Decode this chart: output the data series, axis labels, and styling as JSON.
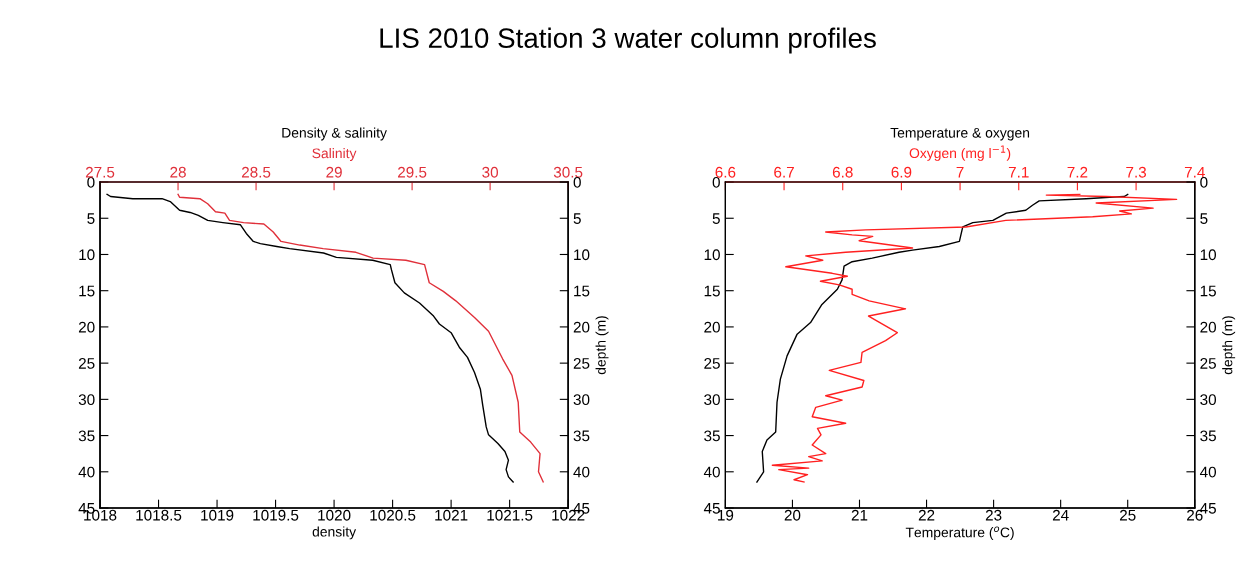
{
  "chart_data": [
    {
      "type": "line",
      "title": "Density & salinity",
      "annotations": [
        "LIS 2010 Station 3 water column profiles"
      ],
      "xlabel": "density",
      "x2label": "Salinity",
      "y2label": "depth (m)",
      "xlim": [
        1018,
        1022
      ],
      "xticks": [
        1018,
        1018.5,
        1019,
        1019.5,
        1020,
        1020.5,
        1021,
        1021.5,
        1022
      ],
      "x2lim": [
        27.5,
        30.5
      ],
      "x2ticks": [
        27.5,
        28,
        28.5,
        29,
        29.5,
        30,
        30.5
      ],
      "ylim": [
        45,
        0
      ],
      "yticks": [
        0,
        5,
        10,
        15,
        20,
        25,
        30,
        35,
        40,
        45
      ],
      "y2lim": [
        45,
        0
      ],
      "y2ticks": [
        0,
        5,
        10,
        15,
        20,
        25,
        30,
        35,
        40,
        45
      ],
      "grid": false,
      "series": [
        {
          "color": "#000000",
          "x": [
            1018.06,
            1018.09,
            1018.28,
            1018.53,
            1018.6,
            1018.68,
            1018.77,
            1018.84,
            1018.92,
            1019.05,
            1019.2,
            1019.25,
            1019.31,
            1019.37,
            1019.51,
            1019.62,
            1019.91,
            1020.02,
            1020.33,
            1020.48,
            1020.49,
            1020.52,
            1020.6,
            1020.73,
            1020.85,
            1020.9,
            1021.0,
            1021.07,
            1021.14,
            1021.2,
            1021.25,
            1021.27,
            1021.3,
            1021.32,
            1021.4,
            1021.46,
            1021.49,
            1021.47,
            1021.49,
            1021.53
          ],
          "values": [
            1.7,
            2.0,
            2.3,
            2.3,
            2.7,
            3.9,
            4.2,
            4.6,
            5.3,
            5.6,
            5.9,
            7.1,
            8.2,
            8.5,
            8.9,
            9.2,
            9.8,
            10.4,
            10.8,
            11.4,
            12.1,
            13.9,
            15.3,
            16.7,
            18.5,
            19.6,
            20.8,
            22.8,
            24.2,
            26.3,
            28.6,
            30.8,
            33.8,
            34.9,
            36.1,
            37.2,
            38.4,
            39.7,
            40.7,
            41.4
          ]
        },
        {
          "color": "#e0303a",
          "axis": "x2",
          "x": [
            28.0,
            28.01,
            28.14,
            28.19,
            28.24,
            28.3,
            28.33,
            28.42,
            28.55,
            28.61,
            28.66,
            28.78,
            28.93,
            29.14,
            29.25,
            29.46,
            29.58,
            29.61,
            29.7,
            29.78,
            29.9,
            29.99,
            30.08,
            30.14,
            30.18,
            30.19,
            30.26,
            30.32,
            30.31,
            30.34
          ],
          "values": [
            1.7,
            2.1,
            2.3,
            3.0,
            4.1,
            4.3,
            5.3,
            5.6,
            5.8,
            6.9,
            8.2,
            8.7,
            9.2,
            9.7,
            10.5,
            10.8,
            11.4,
            13.9,
            15.1,
            16.4,
            18.7,
            20.6,
            24.4,
            26.7,
            30.4,
            34.5,
            35.9,
            37.5,
            40.0,
            41.4
          ]
        }
      ]
    },
    {
      "type": "line",
      "title": "Temperature & oxygen",
      "xlabel": "Temperature ($^{o}$C)",
      "x2label": "Oxygen (mg l$^{−1}$)",
      "y2label": "depth (m)",
      "xlim": [
        19,
        26
      ],
      "xticks": [
        19,
        20,
        21,
        22,
        23,
        24,
        25,
        26
      ],
      "x2lim": [
        6.6,
        7.4
      ],
      "x2ticks": [
        6.6,
        6.7,
        6.8,
        6.9,
        7,
        7.1,
        7.2,
        7.3,
        7.4
      ],
      "ylim": [
        45,
        0
      ],
      "yticks": [
        0,
        5,
        10,
        15,
        20,
        25,
        30,
        35,
        40,
        45
      ],
      "y2lim": [
        45,
        0
      ],
      "y2ticks": [
        0,
        5,
        10,
        15,
        20,
        25,
        30,
        35,
        40,
        45
      ],
      "grid": false,
      "series": [
        {
          "color": "#000000",
          "x": [
            25.0,
            24.95,
            24.73,
            24.38,
            23.68,
            23.58,
            23.48,
            23.19,
            22.99,
            22.69,
            22.54,
            22.49,
            22.19,
            21.79,
            21.59,
            21.19,
            20.89,
            20.77,
            20.74,
            20.67,
            20.44,
            20.27,
            20.07,
            19.92,
            19.82,
            19.77,
            19.75,
            19.62,
            19.55,
            19.57,
            19.47
          ],
          "values": [
            1.7,
            2.0,
            2.1,
            2.3,
            2.6,
            3.2,
            3.9,
            4.3,
            5.3,
            5.6,
            6.2,
            8.2,
            8.9,
            9.4,
            9.7,
            10.5,
            11.0,
            11.6,
            13.5,
            14.8,
            16.9,
            19.4,
            21.0,
            24.0,
            27.2,
            30.4,
            34.5,
            35.6,
            37.2,
            40.0,
            41.4
          ]
        },
        {
          "color": "#ff2020",
          "axis": "x2",
          "x": [
            7.204,
            7.147,
            7.249,
            7.369,
            7.232,
            7.329,
            7.272,
            7.292,
            7.226,
            7.078,
            7.01,
            6.839,
            6.771,
            6.816,
            6.851,
            6.828,
            6.919,
            6.805,
            6.737,
            6.766,
            6.703,
            6.782,
            6.808,
            6.762,
            6.794,
            6.816,
            6.816,
            6.845,
            6.907,
            6.844,
            6.893,
            6.873,
            6.833,
            6.831,
            6.777,
            6.836,
            6.833,
            6.771,
            6.799,
            6.754,
            6.748,
            6.805,
            6.757,
            6.763,
            6.748,
            6.771,
            6.742,
            6.765,
            6.68,
            6.742,
            6.691,
            6.74,
            6.717,
            6.734
          ],
          "values": [
            1.7,
            1.8,
            2.0,
            2.4,
            2.9,
            3.6,
            4.0,
            4.4,
            4.8,
            5.3,
            6.2,
            6.6,
            6.9,
            7.3,
            7.5,
            8.1,
            9.1,
            9.7,
            10.2,
            10.8,
            11.7,
            12.6,
            13.0,
            13.7,
            14.2,
            14.8,
            15.5,
            16.4,
            17.5,
            18.5,
            20.8,
            21.9,
            23.5,
            24.9,
            26.0,
            27.4,
            28.3,
            29.5,
            30.1,
            31.1,
            32.4,
            33.3,
            34.0,
            34.9,
            36.3,
            37.5,
            37.9,
            38.5,
            39.1,
            39.5,
            39.7,
            40.4,
            41.1,
            41.4
          ]
        }
      ]
    }
  ]
}
